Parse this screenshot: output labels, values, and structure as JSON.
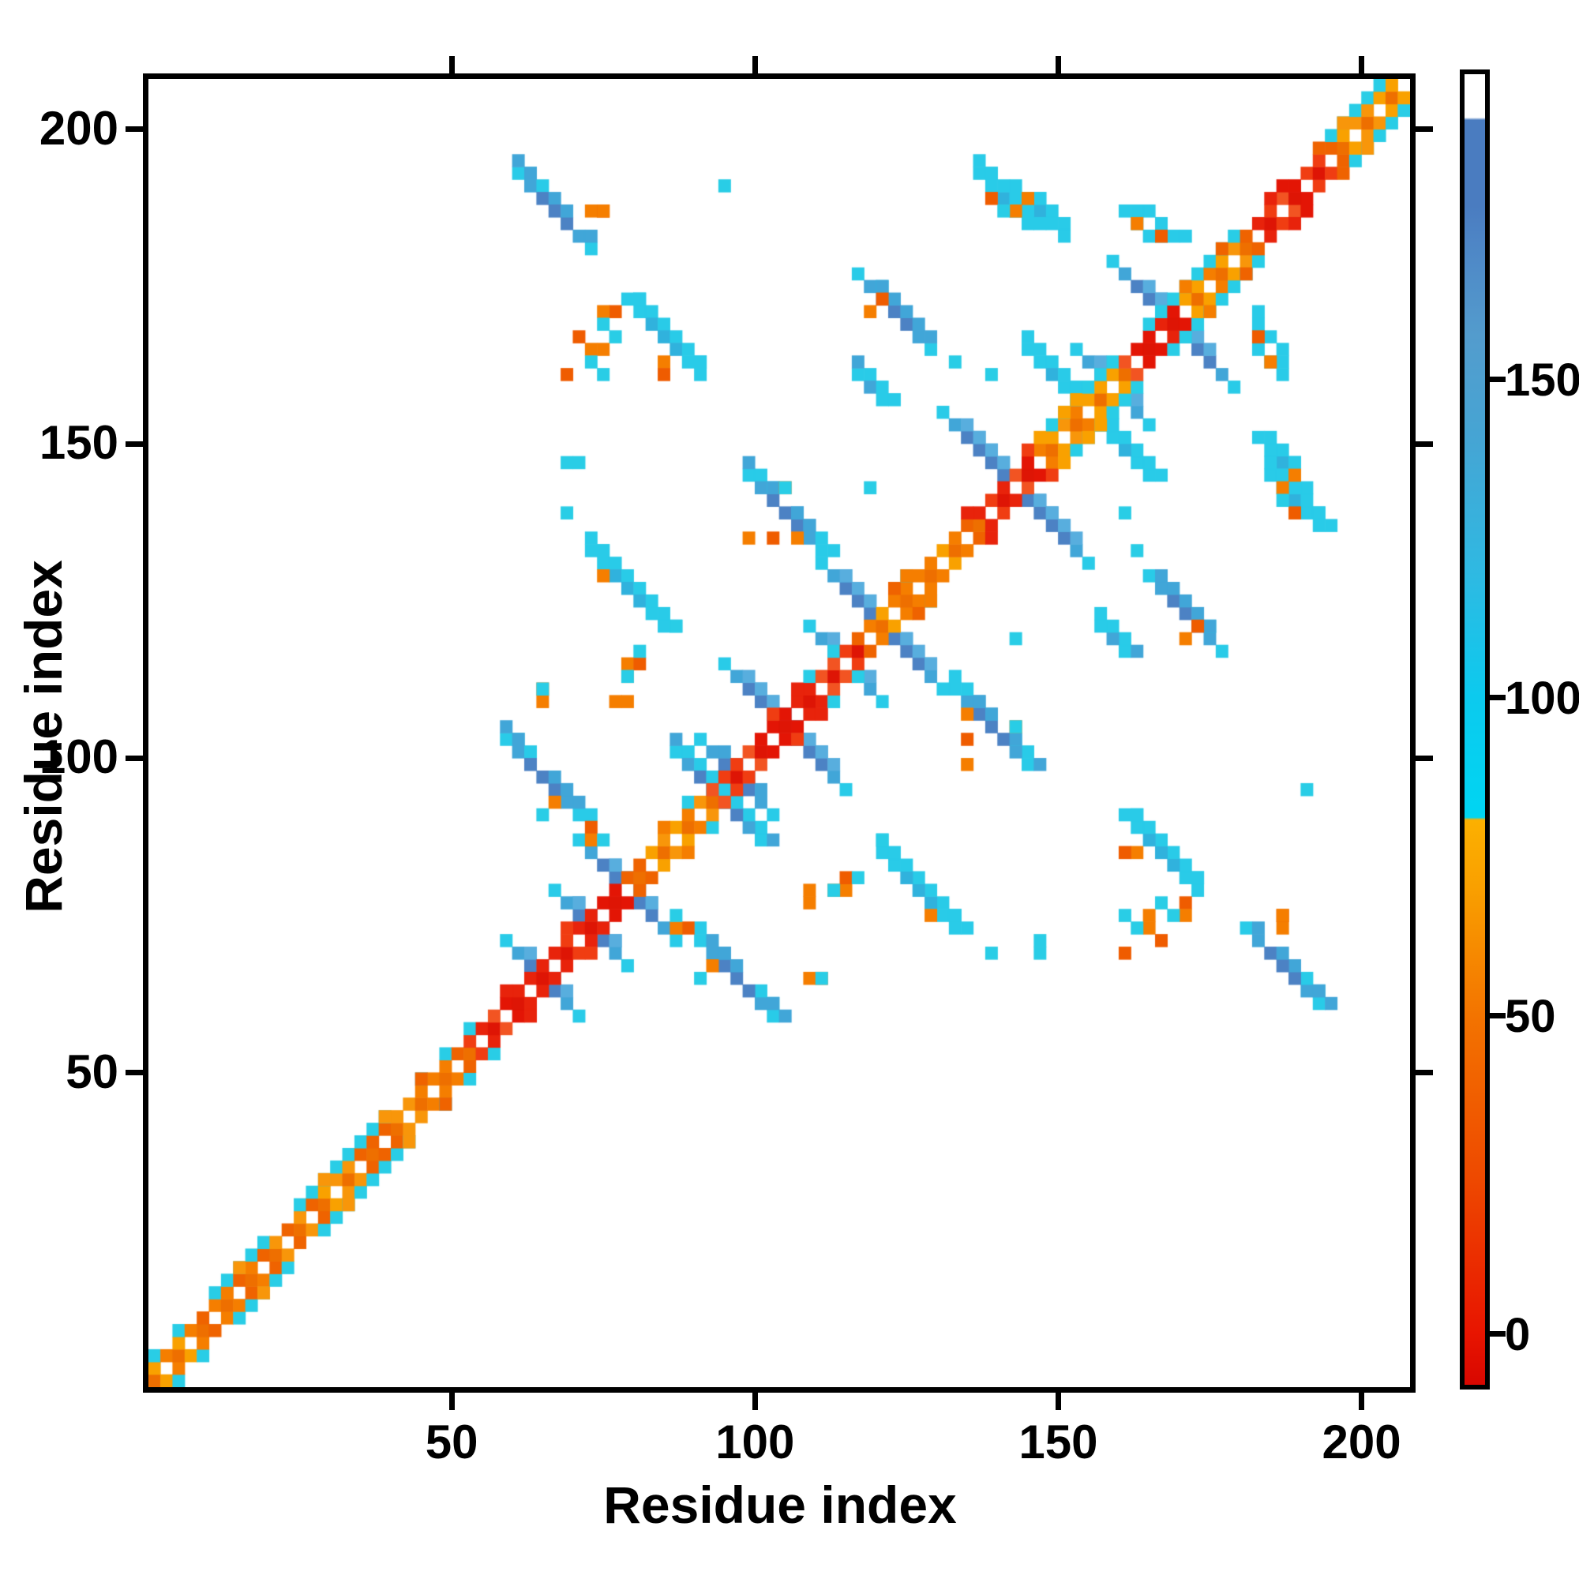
{
  "chart_data": {
    "type": "heatmap",
    "subtype": "protein_residue_contact_map",
    "title": "",
    "xlabel": "Residue index",
    "ylabel": "Residue index",
    "x_range": [
      0,
      208
    ],
    "y_range": [
      0,
      208
    ],
    "x_ticks": [
      50,
      100,
      150,
      200
    ],
    "y_ticks": [
      50,
      100,
      150,
      200
    ],
    "grid_cell_residues": 2,
    "symmetric": true,
    "colorbar": {
      "ticks": [
        0,
        50,
        100,
        150
      ],
      "value_range": [
        -8,
        198
      ],
      "gradient_stops_top_to_bottom": [
        {
          "pos": 0.0,
          "color": "#ffffff"
        },
        {
          "pos": 0.033,
          "color": "#ffffff"
        },
        {
          "pos": 0.035,
          "color": "#4a7cc0"
        },
        {
          "pos": 0.1,
          "color": "#4a7cc0"
        },
        {
          "pos": 0.13,
          "color": "#4e86c6"
        },
        {
          "pos": 0.2,
          "color": "#539ccd"
        },
        {
          "pos": 0.28,
          "color": "#45a5d4"
        },
        {
          "pos": 0.38,
          "color": "#2fb9e2"
        },
        {
          "pos": 0.475,
          "color": "#0ccaee"
        },
        {
          "pos": 0.567,
          "color": "#00d5f2"
        },
        {
          "pos": 0.569,
          "color": "#fcb000"
        },
        {
          "pos": 0.62,
          "color": "#f9a000"
        },
        {
          "pos": 0.72,
          "color": "#f37300"
        },
        {
          "pos": 0.84,
          "color": "#ee4a00"
        },
        {
          "pos": 0.96,
          "color": "#e81500"
        },
        {
          "pos": 1.0,
          "color": "#d80700"
        }
      ]
    },
    "diagonal_band": {
      "extent": [
        1,
        206
      ],
      "red_segments": [
        [
          55,
          80
        ],
        [
          95,
          118
        ],
        [
          138,
          147
        ],
        [
          162,
          172
        ],
        [
          184,
          196
        ]
      ],
      "cyan_fleck_segments": [
        [
          3,
          10
        ],
        [
          44,
          56
        ],
        [
          88,
          94
        ],
        [
          108,
          116
        ],
        [
          124,
          130
        ]
      ],
      "cyan_dense_segments": [
        [
          12,
          22
        ],
        [
          26,
          42
        ],
        [
          150,
          161
        ],
        [
          167,
          182
        ],
        [
          196,
          205
        ]
      ]
    },
    "x_crossings": [
      {
        "center": 63,
        "half_len": 4
      },
      {
        "center": 71,
        "half_len": 4
      },
      {
        "center": 77.5,
        "half_len": 6
      },
      {
        "center": 95,
        "half_len": 3
      },
      {
        "center": 104,
        "half_len": 7
      },
      {
        "center": 113,
        "half_len": 3
      },
      {
        "center": 119,
        "half_len": 7
      },
      {
        "center": 142,
        "half_len": 9
      },
      {
        "center": 157,
        "half_len": 3
      },
      {
        "center": 168.5,
        "half_len": 8
      }
    ],
    "clusters": [
      {
        "i": 65.5,
        "j": 186.5,
        "half_len": 5,
        "palette": "blue"
      },
      {
        "i": 121,
        "j": 170,
        "half_len": 6,
        "palette": "blue"
      },
      {
        "i": 104.8,
        "j": 137.5,
        "half_len": 6,
        "palette": "blue"
      },
      {
        "i": 83.5,
        "j": 165.8,
        "half_len": 5,
        "palette": "cyan"
      },
      {
        "i": 78.5,
        "j": 126,
        "half_len": 5,
        "palette": "cyan"
      },
      {
        "i": 63,
        "j": 95.5,
        "half_len": 5,
        "palette": "blue"
      },
      {
        "i": 89.8,
        "j": 95,
        "half_len": 3,
        "palette": "blue"
      },
      {
        "i": 145.5,
        "j": 185.3,
        "half_len": 4,
        "palette": "cyan"
      },
      {
        "i": 140.8,
        "j": 187.8,
        "half_len": 4,
        "palette": "cyan"
      },
      {
        "i": 148.2,
        "j": 159.8,
        "half_len": 3,
        "palette": "cyan"
      },
      {
        "i": 165,
        "j": 183.8,
        "half_len": 2,
        "palette": "cyan"
      },
      {
        "i": 162.5,
        "j": 184.4,
        "half_len": 2,
        "palette": "cyan"
      },
      {
        "i": 117.7,
        "j": 157.3,
        "half_len": 1,
        "palette": "blue"
      }
    ],
    "orange_dots": [
      [
        71.5,
        186.3
      ],
      [
        73,
        186.3
      ],
      [
        142.8,
        185.6
      ],
      [
        162.3,
        183
      ],
      [
        165.2,
        182.5
      ],
      [
        138.8,
        187
      ],
      [
        119,
        171.5
      ],
      [
        118.3,
        170.2
      ],
      [
        104.3,
        141
      ],
      [
        102.9,
        134.5
      ],
      [
        105.8,
        133.9
      ],
      [
        98.9,
        133.9
      ],
      [
        83.2,
        161.3
      ],
      [
        84.5,
        160.9
      ],
      [
        71.9,
        164.6
      ],
      [
        74.5,
        164.3
      ],
      [
        67.2,
        159.9
      ],
      [
        76.2,
        108.8
      ],
      [
        77.2,
        114.2
      ],
      [
        80.8,
        113.9
      ],
      [
        78,
        107.8
      ],
      [
        78.5,
        111.5
      ],
      [
        63,
        109.8
      ],
      [
        63.8,
        108.3
      ],
      [
        65.1,
        92.9
      ],
      [
        72.5,
        88.3
      ],
      [
        71.5,
        85.2
      ],
      [
        74.9,
        127.9
      ],
      [
        70,
        165.9
      ],
      [
        76.3,
        169.9
      ],
      [
        73.9,
        169.9
      ],
      [
        74.5,
        186.9
      ],
      [
        143.3,
        187.3
      ]
    ],
    "cyan_dots": [
      [
        94,
        189.5
      ],
      [
        67.4,
        146.3
      ],
      [
        71.3,
        161.9
      ],
      [
        73.2,
        160.1
      ],
      [
        137.7,
        159.6
      ],
      [
        104.2,
        142.6
      ],
      [
        117.3,
        142.5
      ],
      [
        162.8,
        132.5
      ],
      [
        140,
        186
      ],
      [
        64.7,
        89.8
      ],
      [
        73.8,
        86.9
      ],
      [
        80.2,
        116.8
      ],
      [
        77.5,
        111.3
      ],
      [
        75.8,
        165.7
      ],
      [
        73.9,
        167.8
      ],
      [
        70,
        145.1
      ],
      [
        63.5,
        110.6
      ],
      [
        67,
        137.5
      ],
      [
        86.9,
        120.9
      ]
    ],
    "palette": {
      "background": "#ffffff",
      "frame": "#000000",
      "band_orange": [
        "#f57e00",
        "#f8960a",
        "#ef6300",
        "#f9a100"
      ],
      "band_red": [
        "#e8230b",
        "#f03d12",
        "#e31505",
        "#f25422"
      ],
      "band_diag_orange": "#ee6f00",
      "band_diag_red": "#de1505",
      "cyan": "#29cde6",
      "x_core": "#4c82c4",
      "x_mid": "#41a6d8",
      "x_mid2": "#58aede",
      "x_tip": "#29cbe8",
      "blob_blue_core": "#4c82c4",
      "blob_blue_mid": "#41a6d8",
      "blob_blue_tip": "#29cbe8",
      "blob_cyan_core": "#30b2dd",
      "blob_cyan_mid": "#29cbe8",
      "dot_orange": "#f57e00",
      "dot_orange_dark": "#ef5c00"
    }
  }
}
